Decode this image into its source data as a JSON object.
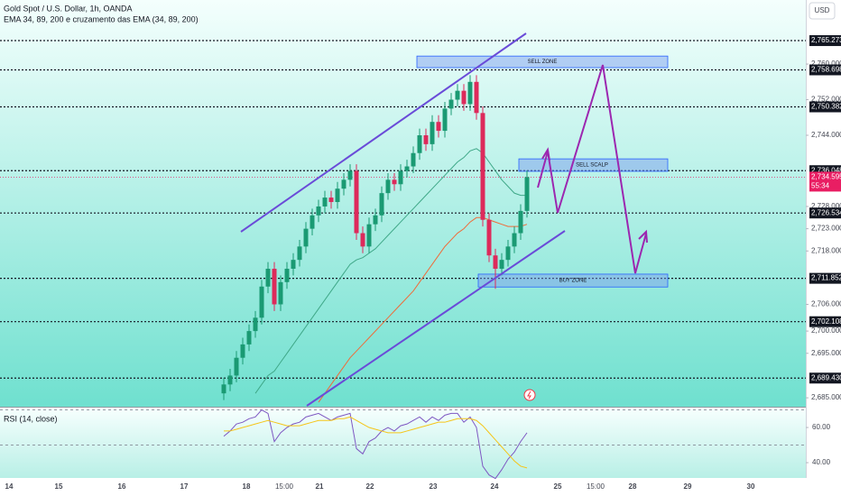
{
  "header": {
    "symbol": "Gold Spot / U.S. Dollar, 1h, OANDA",
    "indicator": "EMA 34, 89, 200 e cruzamento das EMA (34, 89, 200)",
    "currency": "USD"
  },
  "chart_data": {
    "type": "candlestick",
    "up_color": "#1a9a73",
    "down_color": "#dd2a5b",
    "time_labels": [
      "14",
      "15",
      "16",
      "17",
      "18",
      "15:00",
      "21",
      "22",
      "23",
      "24",
      "25",
      "15:00",
      "28",
      "29",
      "30"
    ],
    "open": [
      2686,
      2688,
      2690,
      2694,
      2697,
      2700,
      2703,
      2710,
      2714,
      2706,
      2711,
      2714,
      2716,
      2719,
      2723,
      2726,
      2728,
      2730,
      2729,
      2732,
      2734,
      2736,
      2722,
      2719,
      2724,
      2726,
      2731,
      2734,
      2733,
      2736,
      2737,
      2740,
      2744,
      2742,
      2747,
      2745,
      2750,
      2752,
      2754,
      2751,
      2756,
      2749,
      2725,
      2717,
      2714,
      2716,
      2719,
      2722,
      2727
    ],
    "high": [
      2689.5,
      2691.5,
      2695.5,
      2698.5,
      2701.5,
      2704.5,
      2711.5,
      2715.5,
      2715.5,
      2712.5,
      2715.5,
      2717.5,
      2720.5,
      2724.5,
      2727.5,
      2729.5,
      2731.5,
      2731.5,
      2733.5,
      2735.5,
      2737.5,
      2737.5,
      2723.5,
      2725.5,
      2727.5,
      2732.5,
      2735.5,
      2735.5,
      2737.5,
      2738.5,
      2741.5,
      2745.5,
      2745.5,
      2748.5,
      2748.5,
      2751.5,
      2753.5,
      2755.5,
      2755.5,
      2757.5,
      2757.5,
      2750.5,
      2726.5,
      2718.5,
      2717.5,
      2720.5,
      2723.5,
      2728.5,
      2736.1
    ],
    "low": [
      2684.5,
      2686.5,
      2688.5,
      2692.5,
      2695.5,
      2698.5,
      2701.5,
      2708.5,
      2704.5,
      2704.5,
      2709.5,
      2712.5,
      2714.5,
      2717.5,
      2721.5,
      2724.5,
      2726.5,
      2727.5,
      2727.5,
      2730.5,
      2732.5,
      2720.5,
      2717.5,
      2717.5,
      2722.5,
      2724.5,
      2729.5,
      2731.5,
      2731.5,
      2734.5,
      2735.5,
      2738.5,
      2740.5,
      2740.5,
      2743.5,
      2743.5,
      2748.5,
      2750.5,
      2749.5,
      2749.5,
      2747.5,
      2723.5,
      2715.5,
      2709.5,
      2712.5,
      2714.5,
      2717.5,
      2720.5,
      2725.5
    ],
    "close": [
      2688,
      2690,
      2694,
      2697,
      2700,
      2703,
      2710,
      2714,
      2706,
      2711,
      2714,
      2716,
      2719,
      2723,
      2726,
      2728,
      2730,
      2729,
      2732,
      2734,
      2736,
      2722,
      2719,
      2724,
      2726,
      2731,
      2734,
      2733,
      2736,
      2737,
      2740,
      2744,
      2742,
      2747,
      2745,
      2750,
      2752,
      2754,
      2751,
      2756,
      2749,
      2725,
      2717,
      2714,
      2716,
      2719,
      2722,
      2727,
      2734.6
    ],
    "overlays": [
      {
        "color": "#3fa888",
        "values": [
          null,
          null,
          null,
          null,
          null,
          2686,
          2688,
          2690,
          2691,
          2693,
          2695,
          2697,
          2699,
          2701,
          2703,
          2705,
          2707,
          2709,
          2711,
          2713,
          2715,
          2716,
          2716.5,
          2717.5,
          2718.5,
          2720,
          2721.5,
          2723,
          2724.5,
          2726,
          2727.5,
          2729,
          2730.5,
          2732,
          2733.5,
          2735,
          2736.5,
          2738,
          2739,
          2740.5,
          2741,
          2740,
          2738,
          2736,
          2734,
          2732.5,
          2731,
          2730.5,
          2730.5
        ]
      },
      {
        "color": "#ef6c3a",
        "values": [
          null,
          null,
          null,
          null,
          null,
          null,
          null,
          null,
          null,
          null,
          null,
          null,
          null,
          null,
          null,
          2684,
          2686,
          2688,
          2690,
          2692,
          2694,
          2695.5,
          2697,
          2698.5,
          2700,
          2701.5,
          2703,
          2704.5,
          2706,
          2707.5,
          2709,
          2711,
          2713,
          2715,
          2717,
          2719,
          2720.5,
          2722,
          2723,
          2724.5,
          2725.5,
          2725.5,
          2725,
          2724.5,
          2724,
          2723.5,
          2723.5,
          2723.5,
          2724
        ]
      }
    ],
    "ylim": [
      2683.2,
      2774.4
    ],
    "yticks": [
      {
        "value": 2760,
        "label": "2,760.000"
      },
      {
        "value": 2752,
        "label": "2,752.000"
      },
      {
        "value": 2744,
        "label": "2,744.000"
      },
      {
        "value": 2728,
        "label": "2,728.000"
      },
      {
        "value": 2723,
        "label": "2,723.000"
      },
      {
        "value": 2718,
        "label": "2,718.000"
      },
      {
        "value": 2706,
        "label": "2,706.000"
      },
      {
        "value": 2700,
        "label": "2,700.000"
      },
      {
        "value": 2695,
        "label": "2,695.000"
      },
      {
        "value": 2685,
        "label": "2,685.000"
      }
    ],
    "levels": [
      {
        "value": 2765.273,
        "label": "2,765.273"
      },
      {
        "value": 2758.698,
        "label": "2,758.698"
      },
      {
        "value": 2750.382,
        "label": "2,750.382"
      },
      {
        "value": 2736.048,
        "label": "2,736.048"
      },
      {
        "value": 2726.534,
        "label": "2,726.534"
      },
      {
        "value": 2711.852,
        "label": "2,711.852"
      },
      {
        "value": 2702.108,
        "label": "2,702.108"
      },
      {
        "value": 2689.43,
        "label": "2,689.430"
      }
    ],
    "last_price": {
      "value": 2734.595,
      "label": "2,734.595",
      "countdown": "55:34",
      "color": "#e91e63"
    },
    "zones": [
      {
        "label": "SELL ZONE",
        "top": 2761.8,
        "bottom": 2759.2
      },
      {
        "label": "SELL SCALP",
        "top": 2738.7,
        "bottom": 2735.9
      },
      {
        "label": "BUY ZONE",
        "top": 2712.8,
        "bottom": 2709.9
      }
    ],
    "rsi": {
      "title": "RSI (14, close)",
      "color": "#7e57c2",
      "ma_color": "#f5c518",
      "values": [
        55,
        58,
        62,
        63,
        65,
        66,
        70,
        68,
        52,
        57,
        60,
        62,
        63,
        66,
        67,
        68,
        66,
        64,
        66,
        67,
        68,
        48,
        45,
        52,
        54,
        58,
        60,
        58,
        61,
        62,
        64,
        66,
        63,
        66,
        64,
        67,
        68,
        68,
        63,
        66,
        60,
        38,
        33,
        31,
        36,
        42,
        46,
        52,
        57
      ],
      "ma": [
        58,
        58,
        59,
        60,
        61,
        62,
        63,
        64,
        63,
        62,
        61,
        61,
        61,
        62,
        63,
        64,
        64,
        64,
        65,
        65,
        66,
        64,
        62,
        60,
        59,
        58,
        57,
        57,
        57,
        58,
        59,
        60,
        61,
        62,
        63,
        63,
        64,
        65,
        65,
        65,
        64,
        61,
        57,
        53,
        49,
        45,
        41,
        38,
        37
      ],
      "ylim": [
        31.3,
        71.3
      ],
      "yticks": [
        {
          "value": 60,
          "label": "60.00"
        },
        {
          "value": 40,
          "label": "40.00"
        }
      ],
      "bands": [
        70,
        50
      ]
    }
  }
}
